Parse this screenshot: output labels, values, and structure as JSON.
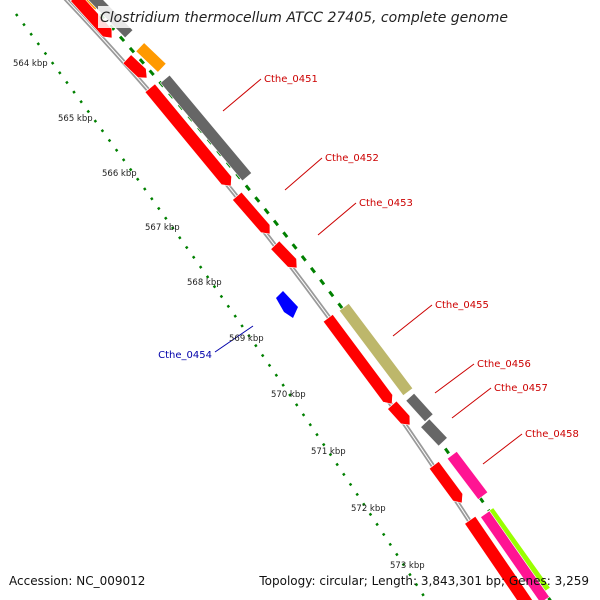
{
  "title": "Clostridium thermocellum ATCC 27405, complete genome",
  "kbp_ticks": [
    "564 kbp",
    "565 kbp",
    "566 kbp",
    "567 kbp",
    "568 kbp",
    "569 kbp",
    "570 kbp",
    "571 kbp",
    "572 kbp",
    "573 kbp"
  ],
  "gene_labels": [
    {
      "name": "Cthe_0451",
      "strand": "forward",
      "color": "#cc0000"
    },
    {
      "name": "Cthe_0452",
      "strand": "forward",
      "color": "#cc0000"
    },
    {
      "name": "Cthe_0453",
      "strand": "forward",
      "color": "#cc0000"
    },
    {
      "name": "Cthe_0454",
      "strand": "reverse",
      "color": "#0000aa"
    },
    {
      "name": "Cthe_0455",
      "strand": "forward",
      "color": "#cc0000"
    },
    {
      "name": "Cthe_0456",
      "strand": "forward",
      "color": "#cc0000"
    },
    {
      "name": "Cthe_0457",
      "strand": "forward",
      "color": "#cc0000"
    },
    {
      "name": "Cthe_0458",
      "strand": "forward",
      "color": "#cc0000"
    }
  ],
  "footer": {
    "accession": "Accession: NC_009012",
    "genome_info": "Topology: circular; Length: 3,843,301 bp; Genes: 3,259"
  },
  "colors": {
    "forward_cds": "#ff0000",
    "reverse_cds": "#0000ff",
    "orange_feature": "#ff9900",
    "gray_feature": "#666666",
    "olive_feature": "#bdb76b",
    "pink_feature": "#ff1493",
    "lime_feature": "#99ff00",
    "backbone": "#999999",
    "gc_ticks": "#008000"
  }
}
